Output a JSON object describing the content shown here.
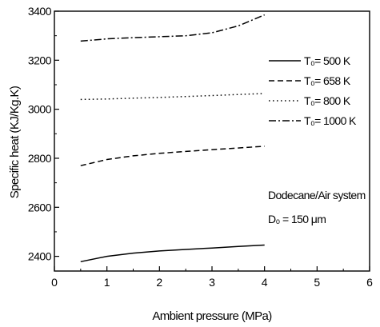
{
  "chart_data": {
    "type": "line",
    "title": "",
    "xlabel": "Ambient pressure (MPa)",
    "ylabel": "Specific heat (KJ/Kg.K)",
    "xlim": [
      0,
      6
    ],
    "ylim": [
      2340,
      3400
    ],
    "x_ticks": [
      "0",
      "1",
      "2",
      "3",
      "4",
      "5",
      "6"
    ],
    "y_ticks": [
      "2400",
      "2600",
      "2800",
      "3000",
      "3200",
      "3400"
    ],
    "x_tick_values": [
      0,
      1,
      2,
      3,
      4,
      5,
      6
    ],
    "y_tick_values": [
      2400,
      2600,
      2800,
      3000,
      3200,
      3400
    ],
    "grid": false,
    "legend_position": "right-middle",
    "annotations": [
      "Dodecane/Air system",
      "D₀ = 150 μm"
    ],
    "series": [
      {
        "name": "T₀= 500 K",
        "dash": "solid",
        "x": [
          0.5,
          1.0,
          1.5,
          2.0,
          2.5,
          3.0,
          3.5,
          4.0
        ],
        "y": [
          2378,
          2400,
          2413,
          2422,
          2428,
          2434,
          2440,
          2446
        ]
      },
      {
        "name": "T₀= 658 K",
        "dash": "dashed",
        "x": [
          0.5,
          1.0,
          1.5,
          2.0,
          2.5,
          3.0,
          3.5,
          4.0
        ],
        "y": [
          2770,
          2795,
          2810,
          2820,
          2828,
          2835,
          2842,
          2849
        ]
      },
      {
        "name": "T₀= 800 K",
        "dash": "dotted",
        "x": [
          0.5,
          1.0,
          1.5,
          2.0,
          2.5,
          3.0,
          3.5,
          4.0
        ],
        "y": [
          3040,
          3042,
          3045,
          3048,
          3052,
          3056,
          3060,
          3064
        ]
      },
      {
        "name": "T₀= 1000 K",
        "dash": "dashdot",
        "x": [
          0.5,
          1.0,
          1.5,
          2.0,
          2.5,
          3.0,
          3.5,
          4.0
        ],
        "y": [
          3278,
          3287,
          3292,
          3296,
          3300,
          3312,
          3340,
          3385
        ]
      }
    ]
  }
}
